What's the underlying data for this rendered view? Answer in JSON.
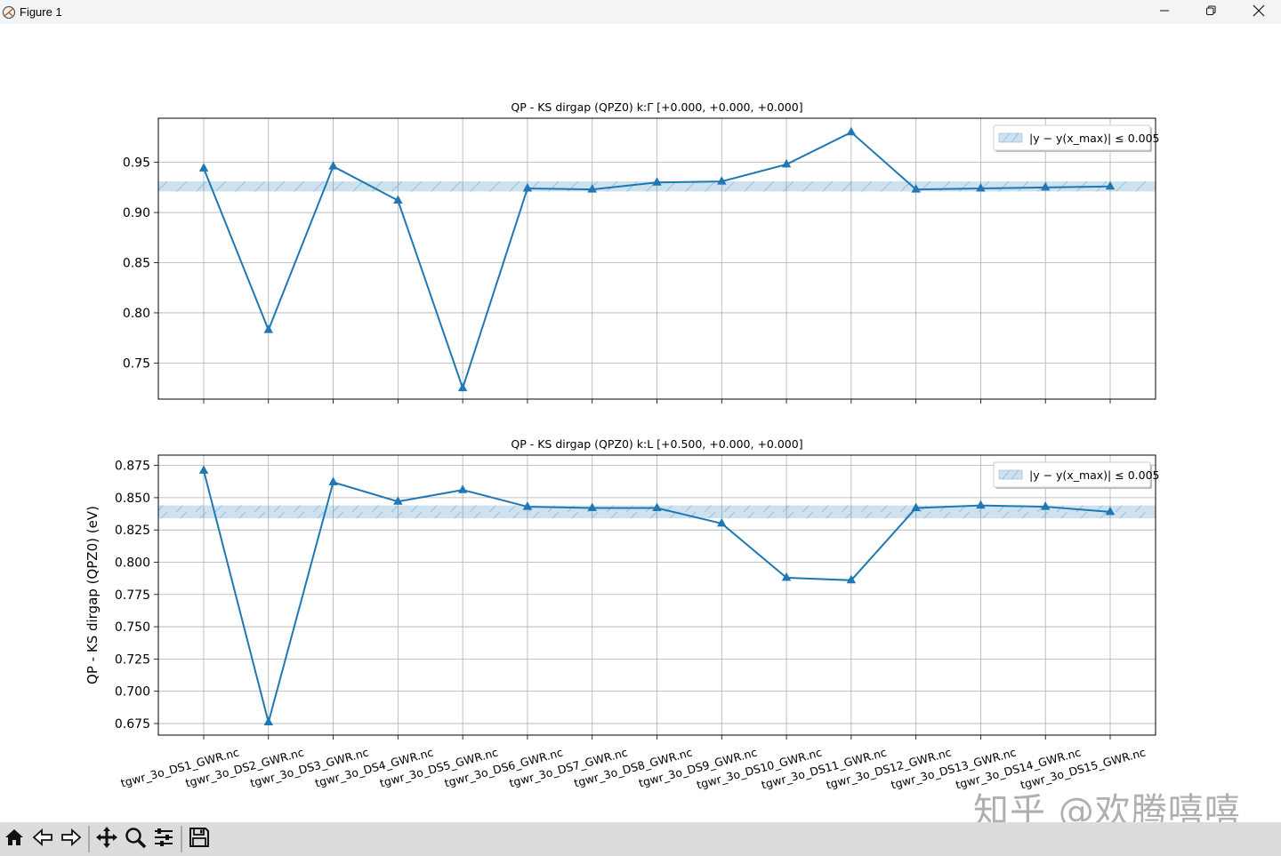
{
  "window": {
    "title": "Figure 1",
    "minimize_icon": "minimize-icon",
    "maximize_icon": "restore-icon",
    "close_icon": "close-icon"
  },
  "toolbar": {
    "items": [
      "home-icon",
      "back-arrow-icon",
      "forward-arrow-icon",
      "pan-icon",
      "zoom-icon",
      "configure-subplots-icon",
      "save-icon"
    ]
  },
  "watermark": "知乎 @欢腾嘻嘻",
  "colors": {
    "line": "#1f77b4",
    "band": "#1f77b4",
    "grid": "#b0b0b0"
  },
  "chart_data": [
    {
      "type": "line",
      "title": "QP - KS dirgap (QPZ0) k:Γ [+0.000, +0.000, +0.000]",
      "xlabel": "",
      "ylabel": "",
      "categories": [
        "tgwr_3o_DS1_GWR.nc",
        "tgwr_3o_DS2_GWR.nc",
        "tgwr_3o_DS3_GWR.nc",
        "tgwr_3o_DS4_GWR.nc",
        "tgwr_3o_DS5_GWR.nc",
        "tgwr_3o_DS6_GWR.nc",
        "tgwr_3o_DS7_GWR.nc",
        "tgwr_3o_DS8_GWR.nc",
        "tgwr_3o_DS9_GWR.nc",
        "tgwr_3o_DS10_GWR.nc",
        "tgwr_3o_DS11_GWR.nc",
        "tgwr_3o_DS12_GWR.nc",
        "tgwr_3o_DS13_GWR.nc",
        "tgwr_3o_DS14_GWR.nc",
        "tgwr_3o_DS15_GWR.nc"
      ],
      "values": [
        0.944,
        0.783,
        0.946,
        0.912,
        0.725,
        0.924,
        0.923,
        0.93,
        0.931,
        0.948,
        0.98,
        0.923,
        0.924,
        0.925,
        0.926
      ],
      "ylim": [
        0.714,
        0.994
      ],
      "yticks": [
        0.75,
        0.8,
        0.85,
        0.9,
        0.95
      ],
      "ytick_labels": [
        "0.75",
        "0.80",
        "0.85",
        "0.90",
        "0.95"
      ],
      "band": [
        0.921,
        0.931
      ],
      "legend": {
        "label": "|y − y(x_max)| ≤ 0.005",
        "position": "top-right"
      },
      "grid": true
    },
    {
      "type": "line",
      "title": "QP - KS dirgap (QPZ0) k:L [+0.500, +0.000, +0.000]",
      "xlabel": "",
      "ylabel": "QP - KS dirgap (QPZ0) (eV)",
      "categories": [
        "tgwr_3o_DS1_GWR.nc",
        "tgwr_3o_DS2_GWR.nc",
        "tgwr_3o_DS3_GWR.nc",
        "tgwr_3o_DS4_GWR.nc",
        "tgwr_3o_DS5_GWR.nc",
        "tgwr_3o_DS6_GWR.nc",
        "tgwr_3o_DS7_GWR.nc",
        "tgwr_3o_DS8_GWR.nc",
        "tgwr_3o_DS9_GWR.nc",
        "tgwr_3o_DS10_GWR.nc",
        "tgwr_3o_DS11_GWR.nc",
        "tgwr_3o_DS12_GWR.nc",
        "tgwr_3o_DS13_GWR.nc",
        "tgwr_3o_DS14_GWR.nc",
        "tgwr_3o_DS15_GWR.nc"
      ],
      "values": [
        0.871,
        0.676,
        0.862,
        0.847,
        0.856,
        0.843,
        0.842,
        0.842,
        0.83,
        0.788,
        0.786,
        0.842,
        0.844,
        0.843,
        0.839
      ],
      "ylim": [
        0.666,
        0.883
      ],
      "yticks": [
        0.675,
        0.7,
        0.725,
        0.75,
        0.775,
        0.8,
        0.825,
        0.85,
        0.875
      ],
      "ytick_labels": [
        "0.675",
        "0.700",
        "0.725",
        "0.750",
        "0.775",
        "0.800",
        "0.825",
        "0.850",
        "0.875"
      ],
      "band": [
        0.834,
        0.844
      ],
      "legend": {
        "label": "|y − y(x_max)| ≤ 0.005",
        "position": "top-right"
      },
      "grid": true
    }
  ]
}
